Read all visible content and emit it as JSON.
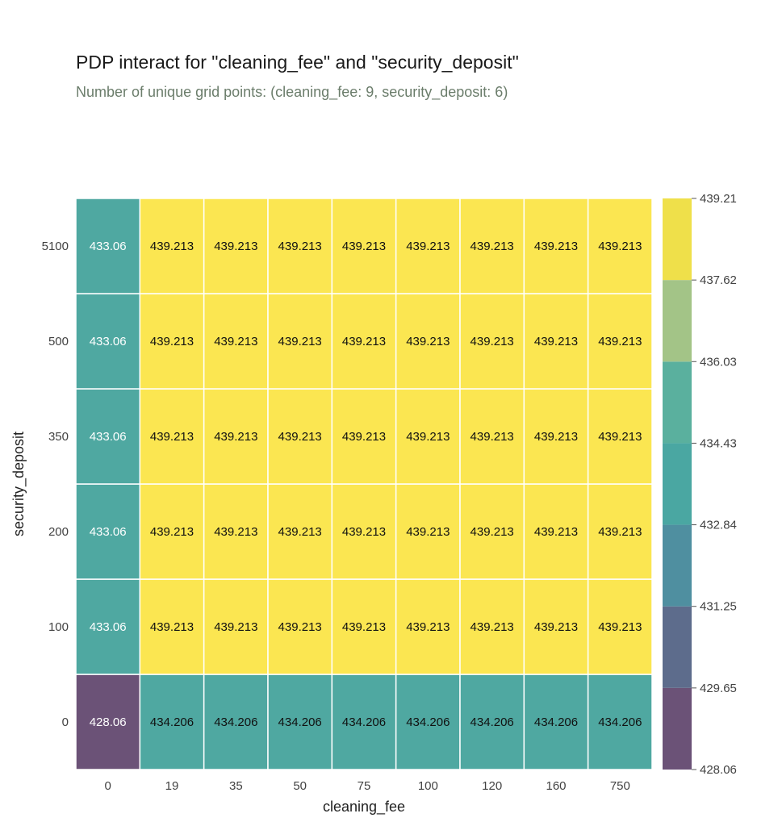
{
  "chart_data": {
    "type": "heatmap",
    "title": "PDP interact for \"cleaning_fee\" and \"security_deposit\"",
    "subtitle": "Number of unique grid points: (cleaning_fee: 9, security_deposit: 6)",
    "xlabel": "cleaning_fee",
    "ylabel": "security_deposit",
    "x_categories": [
      "0",
      "19",
      "35",
      "50",
      "75",
      "100",
      "120",
      "160",
      "750"
    ],
    "y_categories": [
      "0",
      "100",
      "200",
      "350",
      "500",
      "5100"
    ],
    "values": [
      [
        "428.06",
        "434.206",
        "434.206",
        "434.206",
        "434.206",
        "434.206",
        "434.206",
        "434.206",
        "434.206"
      ],
      [
        "433.06",
        "439.213",
        "439.213",
        "439.213",
        "439.213",
        "439.213",
        "439.213",
        "439.213",
        "439.213"
      ],
      [
        "433.06",
        "439.213",
        "439.213",
        "439.213",
        "439.213",
        "439.213",
        "439.213",
        "439.213",
        "439.213"
      ],
      [
        "433.06",
        "439.213",
        "439.213",
        "439.213",
        "439.213",
        "439.213",
        "439.213",
        "439.213",
        "439.213"
      ],
      [
        "433.06",
        "439.213",
        "439.213",
        "439.213",
        "439.213",
        "439.213",
        "439.213",
        "439.213",
        "439.213"
      ],
      [
        "433.06",
        "439.213",
        "439.213",
        "439.213",
        "439.213",
        "439.213",
        "439.213",
        "439.213",
        "439.213"
      ]
    ],
    "colorbar": {
      "ticks": [
        "428.06",
        "429.65",
        "431.25",
        "432.84",
        "434.43",
        "436.03",
        "437.62",
        "439.21"
      ],
      "band_colors": [
        "#6b5277",
        "#5d6c8c",
        "#4f8fa0",
        "#4aa7a2",
        "#5ab09e",
        "#a3c487",
        "#efe04a"
      ]
    },
    "colormap": "viridis",
    "colors": {
      "low": "#6b5277",
      "mid": "#4fa8a1",
      "high": "#fbe651",
      "grid_line": "#ffffff"
    }
  }
}
